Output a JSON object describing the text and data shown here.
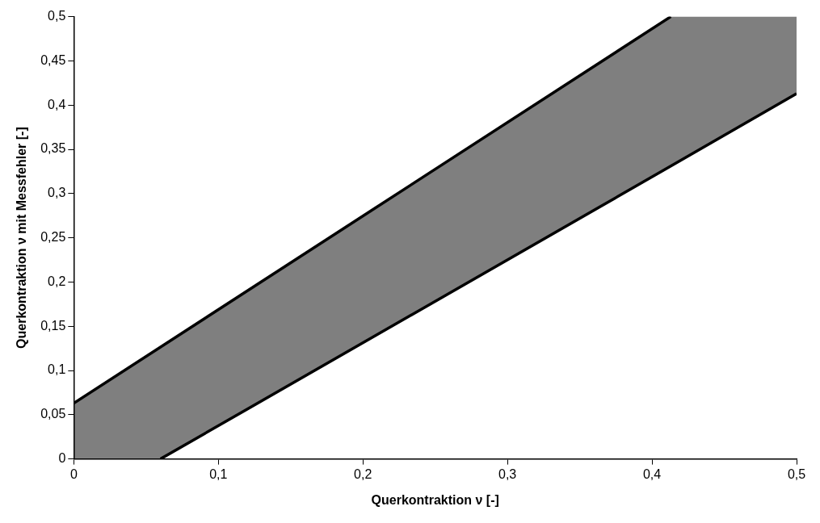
{
  "chart_data": {
    "type": "line",
    "xlabel": "Querkontraktion ν [-]",
    "ylabel": "Querkontraktion ν mit Messfehler [-]",
    "xlim": [
      0,
      0.5
    ],
    "ylim": [
      0,
      0.5
    ],
    "xticks": [
      {
        "value": 0,
        "label": "0"
      },
      {
        "value": 0.1,
        "label": "0,1"
      },
      {
        "value": 0.2,
        "label": "0,2"
      },
      {
        "value": 0.3,
        "label": "0,3"
      },
      {
        "value": 0.4,
        "label": "0,4"
      },
      {
        "value": 0.5,
        "label": "0,5"
      }
    ],
    "yticks": [
      {
        "value": 0,
        "label": "0"
      },
      {
        "value": 0.05,
        "label": "0,05"
      },
      {
        "value": 0.1,
        "label": "0,1"
      },
      {
        "value": 0.15,
        "label": "0,15"
      },
      {
        "value": 0.2,
        "label": "0,2"
      },
      {
        "value": 0.25,
        "label": "0,25"
      },
      {
        "value": 0.3,
        "label": "0,3"
      },
      {
        "value": 0.35,
        "label": "0,35"
      },
      {
        "value": 0.4,
        "label": "0,4"
      },
      {
        "value": 0.45,
        "label": "0,45"
      },
      {
        "value": 0.5,
        "label": "0,5"
      }
    ],
    "grid": false,
    "legend": false,
    "marker": "none",
    "line_style": "solid",
    "series": [
      {
        "color": "#000000",
        "x": [
          0,
          0.413
        ],
        "values": [
          0.063,
          0.5
        ]
      },
      {
        "color": "#000000",
        "x": [
          0,
          0.06,
          0.413,
          0.5
        ],
        "values": [
          null,
          0,
          0.331,
          0.413
        ],
        "lower": [
          0,
          0,
          0.331,
          0.413
        ],
        "upper": [
          0.063,
          0.127,
          0.5,
          0.5
        ]
      }
    ]
  }
}
